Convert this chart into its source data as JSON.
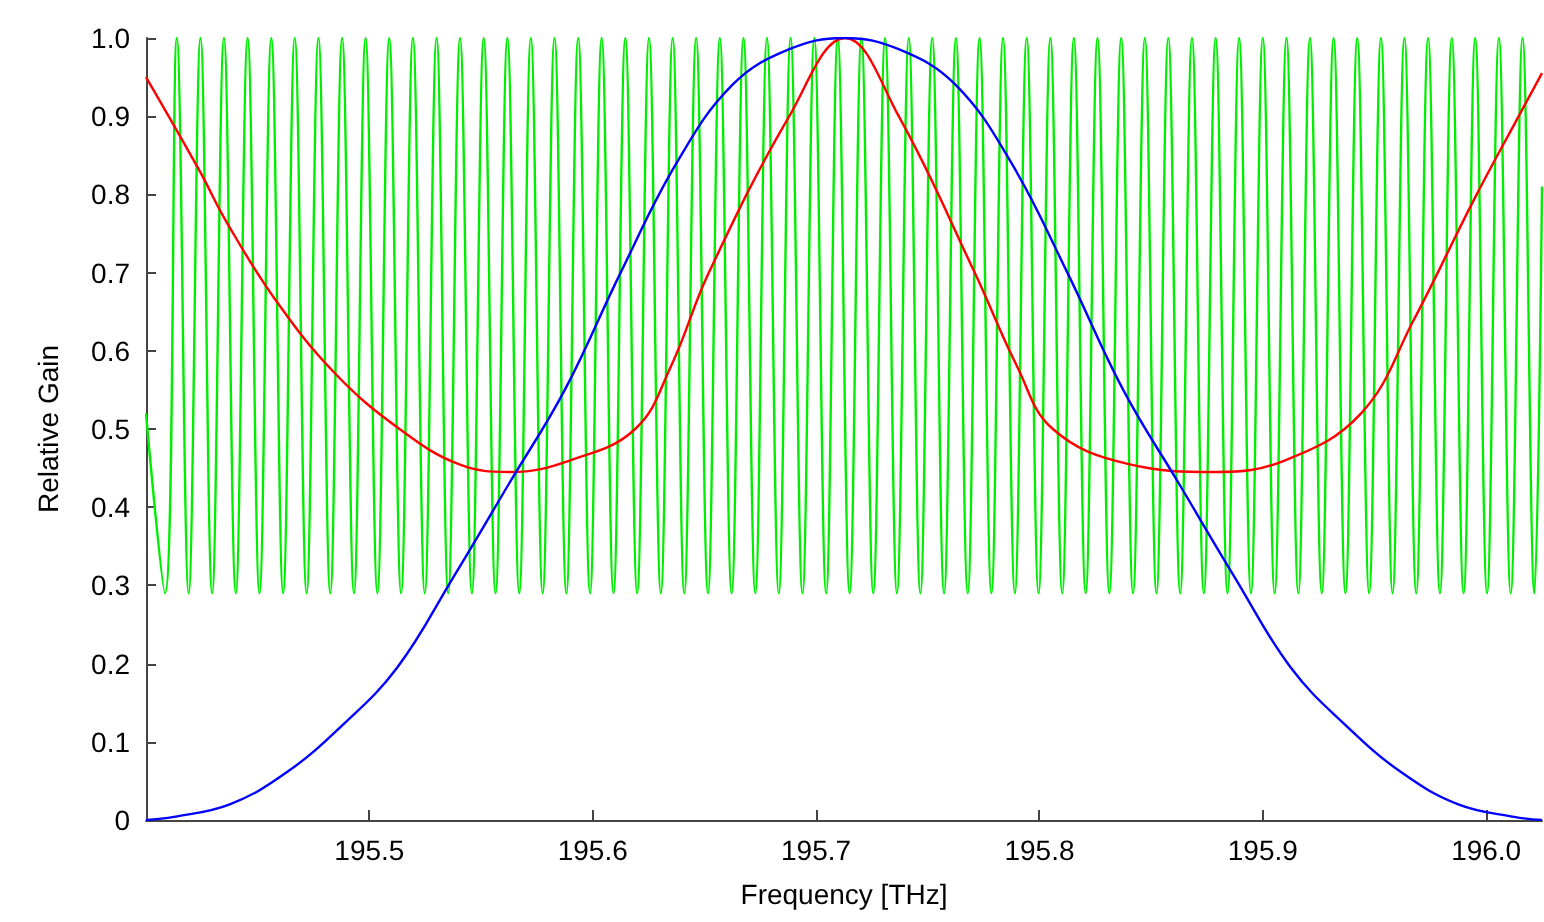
{
  "chart_data": {
    "type": "line",
    "xlabel": "Frequency [THz]",
    "ylabel": "Relative Gain",
    "xlim": [
      195.4,
      196.025
    ],
    "xticks": [
      195.5,
      195.6,
      195.7,
      195.8,
      195.9,
      {
        "value": 196,
        "label": "196.0"
      }
    ],
    "ylim": [
      0,
      1
    ],
    "yticks": [
      0,
      0.1,
      0.2,
      0.3,
      0.4,
      0.5,
      0.6,
      0.7,
      0.8,
      0.9,
      {
        "value": 1,
        "label": "1.0"
      }
    ],
    "grid": false,
    "marker": "none",
    "line_style": "solid",
    "series": [
      {
        "color": "#00ee00",
        "x": [
          195.4,
          195.4085,
          195.4138,
          195.4191,
          195.4244,
          195.4296,
          195.4349,
          195.4402,
          195.4455,
          195.4508,
          195.4561,
          195.4614,
          195.4666,
          195.4719,
          195.4772,
          195.4825,
          195.4878,
          195.4931,
          195.4983,
          195.5036,
          195.5089,
          195.5142,
          195.5195,
          195.5248,
          195.5301,
          195.5353,
          195.5406,
          195.5459,
          195.5512,
          195.5565,
          195.5618,
          195.5671,
          195.5723,
          195.5776,
          195.5829,
          195.5882,
          195.5935,
          195.5988,
          195.604,
          195.6093,
          195.6146,
          195.6199,
          195.6252,
          195.6305,
          195.6358,
          195.641,
          195.6463,
          195.6516,
          195.6569,
          195.6622,
          195.6675,
          195.6728,
          195.678,
          195.6833,
          195.6886,
          195.6939,
          195.6992,
          195.7045,
          195.7097,
          195.715,
          195.7203,
          195.7256,
          195.7309,
          195.7362,
          195.7415,
          195.7467,
          195.752,
          195.7573,
          195.7626,
          195.7679,
          195.7732,
          195.7785,
          195.7837,
          195.789,
          195.7943,
          195.7996,
          195.8049,
          195.8102,
          195.8154,
          195.8207,
          195.826,
          195.8313,
          195.8366,
          195.8419,
          195.8472,
          195.8524,
          195.8577,
          195.863,
          195.8683,
          195.8736,
          195.8789,
          195.8842,
          195.8894,
          195.8947,
          195.9,
          195.9053,
          195.9106,
          195.9159,
          195.9211,
          195.9264,
          195.9317,
          195.937,
          195.9423,
          195.9476,
          195.9529,
          195.9581,
          195.9634,
          195.9687,
          195.974,
          195.9793,
          195.9846,
          195.9899,
          195.9951,
          196.0004,
          196.0057,
          196.011,
          196.0163,
          196.0216,
          196.025
        ],
        "values": [
          0.52,
          0.29,
          1.0,
          0.29,
          1.0,
          0.29,
          1.0,
          0.29,
          1.0,
          0.29,
          1.0,
          0.29,
          1.0,
          0.29,
          1.0,
          0.29,
          1.0,
          0.29,
          1.0,
          0.29,
          1.0,
          0.29,
          1.0,
          0.29,
          1.0,
          0.29,
          1.0,
          0.29,
          1.0,
          0.29,
          1.0,
          0.29,
          1.0,
          0.29,
          1.0,
          0.29,
          1.0,
          0.29,
          1.0,
          0.29,
          1.0,
          0.29,
          1.0,
          0.29,
          1.0,
          0.29,
          1.0,
          0.29,
          1.0,
          0.29,
          1.0,
          0.29,
          1.0,
          0.29,
          1.0,
          0.29,
          1.0,
          0.29,
          1.0,
          0.29,
          1.0,
          0.29,
          1.0,
          0.29,
          1.0,
          0.29,
          1.0,
          0.29,
          1.0,
          0.29,
          1.0,
          0.29,
          1.0,
          0.29,
          1.0,
          0.29,
          1.0,
          0.29,
          1.0,
          0.29,
          1.0,
          0.29,
          1.0,
          0.29,
          1.0,
          0.29,
          1.0,
          0.29,
          1.0,
          0.29,
          1.0,
          0.29,
          1.0,
          0.29,
          1.0,
          0.29,
          1.0,
          0.29,
          1.0,
          0.29,
          1.0,
          0.29,
          1.0,
          0.29,
          1.0,
          0.29,
          1.0,
          0.29,
          1.0,
          0.29,
          1.0,
          0.29,
          1.0,
          0.29,
          1.0,
          0.29,
          1.0,
          0.29,
          0.81
        ]
      },
      {
        "color": "#ff0000",
        "x": [
          195.4,
          195.424,
          195.436,
          195.458,
          195.485,
          195.5135,
          195.54,
          195.563,
          195.59,
          195.619,
          195.635,
          195.652,
          195.688,
          195.713,
          195.737,
          195.771,
          195.79,
          195.806,
          195.84,
          195.879,
          195.91,
          195.944,
          195.9675,
          195.9945,
          196.0153,
          196.025
        ],
        "values": [
          0.95,
          0.83,
          0.765,
          0.665,
          0.57,
          0.5,
          0.455,
          0.445,
          0.46,
          0.5,
          0.58,
          0.7,
          0.9,
          1.0,
          0.9,
          0.7,
          0.58,
          0.5,
          0.455,
          0.445,
          0.46,
          0.52,
          0.639,
          0.793,
          0.904,
          0.955
        ]
      },
      {
        "color": "#0000ff",
        "x": [
          195.4,
          195.4125,
          195.4375,
          195.4625,
          195.4875,
          195.5125,
          195.5375,
          195.5625,
          195.5875,
          195.6125,
          195.6375,
          195.6625,
          195.6875,
          195.7125,
          195.7375,
          195.7625,
          195.7875,
          195.8125,
          195.8375,
          195.8625,
          195.8875,
          195.9125,
          195.9375,
          195.9625,
          195.9875,
          196.0125,
          196.025
        ],
        "values": [
          0,
          0.004,
          0.02,
          0.06,
          0.12,
          0.195,
          0.31,
          0.43,
          0.55,
          0.7,
          0.84,
          0.94,
          0.985,
          1.0,
          0.985,
          0.94,
          0.84,
          0.7,
          0.55,
          0.43,
          0.31,
          0.195,
          0.12,
          0.06,
          0.02,
          0.004,
          0
        ]
      }
    ]
  }
}
